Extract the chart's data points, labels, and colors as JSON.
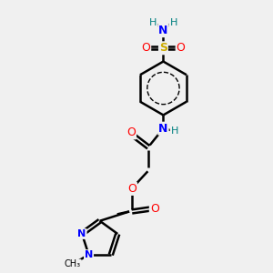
{
  "bg_color": "#f0f0f0",
  "atom_colors": {
    "C": "#000000",
    "H": "#008080",
    "N": "#0000ff",
    "O": "#ff0000",
    "S": "#ccaa00"
  },
  "bond_color": "#000000"
}
